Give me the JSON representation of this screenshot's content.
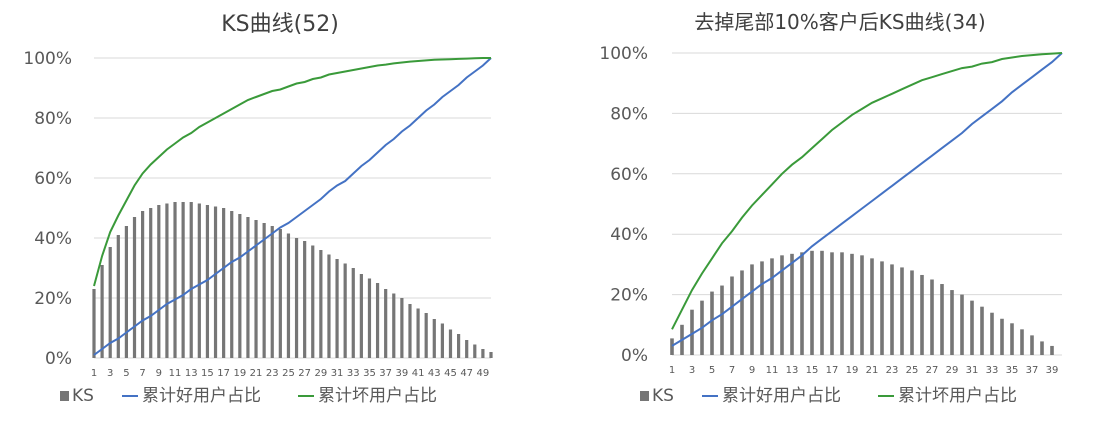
{
  "chart_data": [
    {
      "type": "bar+line",
      "title": "KS曲线(52)",
      "y_tick_labels": [
        "0%",
        "20%",
        "40%",
        "60%",
        "80%",
        "100%"
      ],
      "x_tick_labels": [
        "1",
        "3",
        "5",
        "7",
        "9",
        "11",
        "13",
        "15",
        "17",
        "19",
        "21",
        "23",
        "25",
        "27",
        "29",
        "31",
        "33",
        "35",
        "37",
        "39",
        "41",
        "43",
        "45",
        "47",
        "49"
      ],
      "legend": [
        "KS",
        "累计好用户占比",
        "累计坏用户占比"
      ],
      "colors": {
        "ks": "#767676",
        "good": "#4472c4",
        "bad": "#3a9a3a",
        "grid": "#d9d9d9",
        "axis_text": "#595959"
      },
      "ylim": [
        0,
        1
      ],
      "x": [
        1,
        2,
        3,
        4,
        5,
        6,
        7,
        8,
        9,
        10,
        11,
        12,
        13,
        14,
        15,
        16,
        17,
        18,
        19,
        20,
        21,
        22,
        23,
        24,
        25,
        26,
        27,
        28,
        29,
        30,
        31,
        32,
        33,
        34,
        35,
        36,
        37,
        38,
        39,
        40,
        41,
        42,
        43,
        44,
        45,
        46,
        47,
        48,
        49,
        50
      ],
      "series": [
        {
          "name": "KS",
          "kind": "bar",
          "values": [
            0.23,
            0.31,
            0.37,
            0.41,
            0.44,
            0.47,
            0.49,
            0.5,
            0.51,
            0.515,
            0.52,
            0.52,
            0.52,
            0.515,
            0.51,
            0.505,
            0.5,
            0.49,
            0.48,
            0.47,
            0.46,
            0.45,
            0.44,
            0.43,
            0.415,
            0.4,
            0.39,
            0.375,
            0.36,
            0.345,
            0.33,
            0.315,
            0.3,
            0.28,
            0.265,
            0.25,
            0.23,
            0.215,
            0.2,
            0.18,
            0.165,
            0.15,
            0.13,
            0.115,
            0.095,
            0.08,
            0.06,
            0.045,
            0.03,
            0.02
          ]
        },
        {
          "name": "累计好用户占比",
          "kind": "line",
          "values": [
            0.01,
            0.03,
            0.05,
            0.065,
            0.085,
            0.105,
            0.125,
            0.14,
            0.16,
            0.18,
            0.195,
            0.21,
            0.23,
            0.245,
            0.26,
            0.28,
            0.3,
            0.32,
            0.335,
            0.355,
            0.375,
            0.395,
            0.415,
            0.435,
            0.45,
            0.47,
            0.49,
            0.51,
            0.53,
            0.555,
            0.575,
            0.59,
            0.615,
            0.64,
            0.66,
            0.685,
            0.71,
            0.73,
            0.755,
            0.775,
            0.8,
            0.825,
            0.845,
            0.87,
            0.89,
            0.91,
            0.935,
            0.955,
            0.975,
            1.0
          ]
        },
        {
          "name": "累计坏用户占比",
          "kind": "line",
          "values": [
            0.24,
            0.34,
            0.42,
            0.475,
            0.525,
            0.575,
            0.615,
            0.645,
            0.67,
            0.695,
            0.715,
            0.735,
            0.75,
            0.77,
            0.785,
            0.8,
            0.815,
            0.83,
            0.845,
            0.86,
            0.87,
            0.88,
            0.89,
            0.895,
            0.905,
            0.915,
            0.92,
            0.93,
            0.935,
            0.945,
            0.95,
            0.955,
            0.96,
            0.965,
            0.97,
            0.975,
            0.978,
            0.982,
            0.985,
            0.988,
            0.99,
            0.992,
            0.994,
            0.995,
            0.996,
            0.997,
            0.998,
            0.999,
            1.0,
            1.0
          ]
        }
      ]
    },
    {
      "type": "bar+line",
      "title": "去掉尾部10%客户后KS曲线(34)",
      "y_tick_labels": [
        "0%",
        "20%",
        "40%",
        "60%",
        "80%",
        "100%"
      ],
      "x_tick_labels": [
        "1",
        "3",
        "5",
        "7",
        "9",
        "11",
        "13",
        "15",
        "17",
        "19",
        "21",
        "23",
        "25",
        "27",
        "29",
        "31",
        "33",
        "35",
        "37",
        "39"
      ],
      "legend": [
        "KS",
        "累计好用户占比",
        "累计坏用户占比"
      ],
      "colors": {
        "ks": "#767676",
        "good": "#4472c4",
        "bad": "#3a9a3a",
        "grid": "#d9d9d9",
        "axis_text": "#595959"
      },
      "ylim": [
        0,
        1
      ],
      "x": [
        1,
        2,
        3,
        4,
        5,
        6,
        7,
        8,
        9,
        10,
        11,
        12,
        13,
        14,
        15,
        16,
        17,
        18,
        19,
        20,
        21,
        22,
        23,
        24,
        25,
        26,
        27,
        28,
        29,
        30,
        31,
        32,
        33,
        34,
        35,
        36,
        37,
        38,
        39,
        40
      ],
      "series": [
        {
          "name": "KS",
          "kind": "bar",
          "values": [
            0.055,
            0.1,
            0.15,
            0.18,
            0.21,
            0.23,
            0.26,
            0.28,
            0.3,
            0.31,
            0.32,
            0.33,
            0.335,
            0.34,
            0.345,
            0.345,
            0.34,
            0.34,
            0.335,
            0.33,
            0.32,
            0.31,
            0.3,
            0.29,
            0.28,
            0.265,
            0.25,
            0.235,
            0.215,
            0.2,
            0.18,
            0.16,
            0.14,
            0.12,
            0.105,
            0.085,
            0.065,
            0.045,
            0.03,
            0.0
          ]
        },
        {
          "name": "累计好用户占比",
          "kind": "line",
          "values": [
            0.03,
            0.05,
            0.07,
            0.09,
            0.115,
            0.135,
            0.16,
            0.185,
            0.21,
            0.235,
            0.255,
            0.28,
            0.305,
            0.33,
            0.36,
            0.385,
            0.41,
            0.435,
            0.46,
            0.485,
            0.51,
            0.535,
            0.56,
            0.585,
            0.61,
            0.635,
            0.66,
            0.685,
            0.71,
            0.735,
            0.765,
            0.79,
            0.815,
            0.84,
            0.87,
            0.895,
            0.92,
            0.945,
            0.97,
            1.0
          ]
        },
        {
          "name": "累计坏用户占比",
          "kind": "line",
          "values": [
            0.085,
            0.15,
            0.215,
            0.27,
            0.32,
            0.37,
            0.41,
            0.455,
            0.495,
            0.53,
            0.565,
            0.6,
            0.63,
            0.655,
            0.685,
            0.715,
            0.745,
            0.77,
            0.795,
            0.815,
            0.835,
            0.85,
            0.865,
            0.88,
            0.895,
            0.91,
            0.92,
            0.93,
            0.94,
            0.95,
            0.955,
            0.965,
            0.97,
            0.98,
            0.985,
            0.99,
            0.993,
            0.996,
            0.998,
            1.0
          ]
        }
      ]
    }
  ]
}
